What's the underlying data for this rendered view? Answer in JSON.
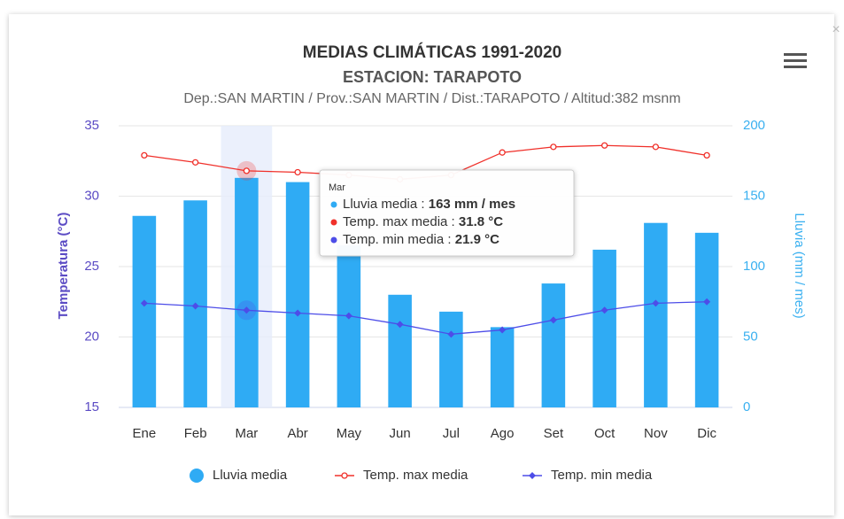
{
  "chart_data": {
    "type": "combo",
    "title": "MEDIAS CLIMÁTICAS 1991-2020",
    "subtitle": "ESTACION: TARAPOTO",
    "caption": "Dep.:SAN MARTIN / Prov.:SAN MARTIN / Dist.:TARAPOTO / Altitud:382 msnm",
    "close_icon": "×",
    "ylabel": "Temperatura (°C)",
    "y2label": "Lluvia (mm / mes)",
    "categories": [
      "Ene",
      "Feb",
      "Mar",
      "Abr",
      "May",
      "Jun",
      "Jul",
      "Ago",
      "Set",
      "Oct",
      "Nov",
      "Dic"
    ],
    "ylim": [
      15,
      35
    ],
    "yticks": [
      15,
      20,
      25,
      30,
      35
    ],
    "y2lim": [
      0,
      200
    ],
    "y2ticks": [
      0,
      50,
      100,
      150,
      200
    ],
    "series": [
      {
        "name": "Lluvia media",
        "type": "bar",
        "axis": "y2",
        "color": "#2fabf4",
        "values": [
          136,
          147,
          163,
          160,
          115,
          80,
          68,
          57,
          88,
          112,
          131,
          124
        ]
      },
      {
        "name": "Temp. max media",
        "type": "line",
        "marker": "circle",
        "color": "#f0302a",
        "values": [
          32.9,
          32.4,
          31.8,
          31.7,
          31.5,
          31.2,
          31.5,
          33.1,
          33.5,
          33.6,
          33.5,
          32.9
        ]
      },
      {
        "name": "Temp. min media",
        "type": "line",
        "marker": "diamond",
        "color": "#4d4de8",
        "values": [
          22.4,
          22.2,
          21.9,
          21.7,
          21.5,
          20.9,
          20.2,
          20.5,
          21.2,
          21.9,
          22.4,
          22.5
        ]
      }
    ],
    "tooltip": {
      "title": "Mar",
      "rows": [
        {
          "name": "Lluvia media",
          "separator": " : ",
          "value": "163 mm / mes"
        },
        {
          "name": "Temp. max media",
          "separator": " : ",
          "value": "31.8 °C"
        },
        {
          "name": "Temp. min media",
          "separator": " : ",
          "value": "21.9 °C"
        }
      ]
    }
  }
}
